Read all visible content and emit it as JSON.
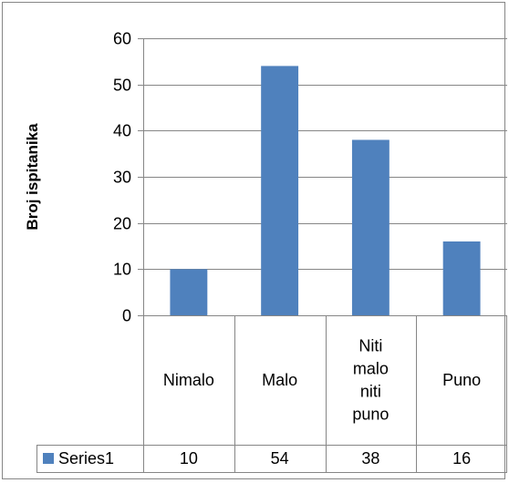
{
  "chart_data": {
    "type": "bar",
    "categories": [
      [
        "Nimalo"
      ],
      [
        "Malo"
      ],
      [
        "Niti",
        "malo",
        "niti",
        "puno"
      ],
      [
        "Puno"
      ]
    ],
    "category_labels": [
      "Nimalo",
      "Malo",
      "Niti malo niti puno",
      "Puno"
    ],
    "series": [
      {
        "name": "Series1",
        "values": [
          10,
          54,
          38,
          16
        ],
        "value_labels": [
          "10",
          "54",
          "38",
          "16"
        ]
      }
    ],
    "yticks": [
      0,
      10,
      20,
      30,
      40,
      50,
      60
    ],
    "ytick_labels": [
      "0",
      "10",
      "20",
      "30",
      "40",
      "50",
      "60"
    ],
    "ylim": [
      0,
      60
    ],
    "ylabel": "Broj ispitanika",
    "xlabel": "",
    "title": "",
    "grid": true,
    "legend": "data-table",
    "colors": {
      "bar": "#4F81BD",
      "grid": "#868686",
      "border": "#868686"
    }
  }
}
